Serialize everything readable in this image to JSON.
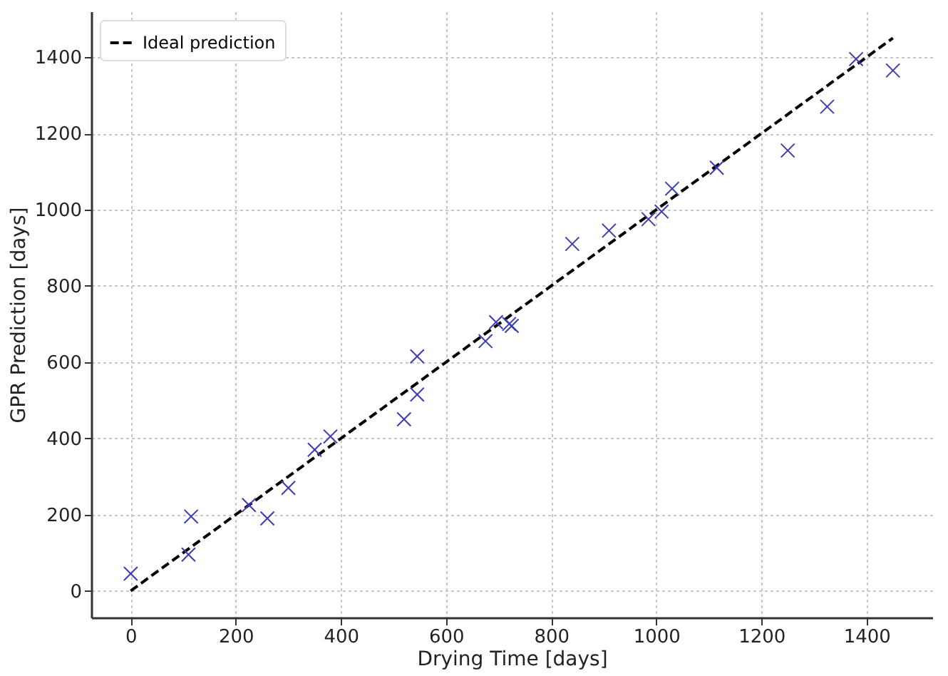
{
  "chart_data": {
    "type": "scatter",
    "xlabel": "Drying Time [days]",
    "ylabel": "GPR Prediction [days]",
    "xlim": [
      -75,
      1525
    ],
    "ylim": [
      -70,
      1520
    ],
    "xticks": [
      0,
      200,
      400,
      600,
      800,
      1000,
      1200,
      1400
    ],
    "yticks": [
      0,
      200,
      400,
      600,
      800,
      1000,
      1200,
      1400
    ],
    "grid": true,
    "legend": "top left",
    "series": [
      {
        "type": "line",
        "name": "Ideal prediction",
        "color": "#000000",
        "line_style": "dashed",
        "x": [
          0,
          1450
        ],
        "values": [
          0,
          1450
        ]
      },
      {
        "marker": "cross",
        "color": "#3c3cb4",
        "x": [
          0,
          110,
          115,
          225,
          260,
          300,
          350,
          380,
          520,
          545,
          545,
          675,
          695,
          720,
          725,
          840,
          910,
          985,
          1010,
          1030,
          1115,
          1250,
          1325,
          1380,
          1450
        ],
        "values": [
          45,
          95,
          195,
          225,
          190,
          270,
          370,
          405,
          450,
          515,
          615,
          655,
          705,
          700,
          695,
          910,
          945,
          975,
          995,
          1055,
          1110,
          1155,
          1270,
          1395,
          1365
        ]
      }
    ]
  }
}
